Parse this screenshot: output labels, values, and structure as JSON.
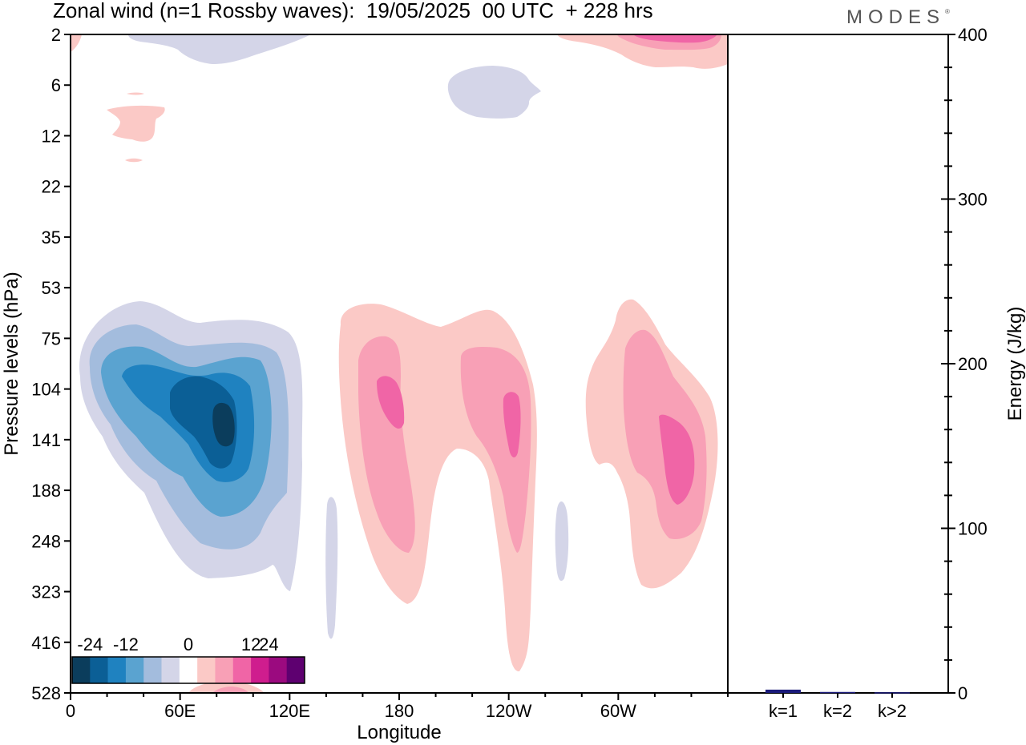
{
  "header": {
    "title": "Zonal wind (n=1 Rossby waves):  19/05/2025  00 UTC  + 228 hrs",
    "brand": "MODES"
  },
  "chart_data": [
    {
      "type": "heatmap",
      "subtype": "filled-contour",
      "xlabel": "Longitude",
      "ylabel": "Pressure levels (hPa)",
      "x_ticks": [
        "0",
        "60E",
        "120E",
        "180",
        "120W",
        "60W"
      ],
      "x_range": [
        0,
        360
      ],
      "y_ticks": [
        "2",
        "6",
        "12",
        "22",
        "35",
        "53",
        "75",
        "104",
        "141",
        "188",
        "248",
        "323",
        "416",
        "528"
      ],
      "colorbar": {
        "labels": [
          "-24",
          "-12",
          "0",
          "12",
          "24"
        ],
        "levels": [
          -30,
          -24,
          -18,
          -12,
          -6,
          -3,
          3,
          6,
          12,
          18,
          24,
          30
        ],
        "colors": [
          "#0b3d5c",
          "#0b5f96",
          "#1f82c0",
          "#5aa3d0",
          "#a3bcdd",
          "#d4d5e8",
          "#ffffff",
          "#fbc9c6",
          "#f8a0b6",
          "#f065a6",
          "#cf1d8e",
          "#9b0a7f",
          "#5e0070"
        ]
      },
      "features": [
        {
          "sign": "negative",
          "peak": "-30 to -24",
          "lon_center": 84,
          "pressure_center": "125",
          "lon_span": [
            4,
            127
          ],
          "pressure_span": [
            "53",
            "323"
          ]
        },
        {
          "sign": "positive",
          "peak": "12 to 18",
          "lon_center": 173,
          "pressure_center": "110",
          "lon_span": [
            149,
            200
          ],
          "pressure_span": [
            "53",
            "323"
          ]
        },
        {
          "sign": "positive",
          "peak": "12 to 18",
          "lon_center": 240,
          "pressure_center": "130",
          "lon_span": [
            200,
            259
          ],
          "pressure_span": [
            "53",
            "416"
          ]
        },
        {
          "sign": "positive",
          "peak": "12 to 18",
          "lon_center": 330,
          "pressure_center": "155",
          "lon_span": [
            283,
            352
          ],
          "pressure_span": [
            "53",
            "323"
          ]
        },
        {
          "sign": "negative",
          "peak": "-6 to -3",
          "lon_center": 237,
          "pressure_center": "6",
          "lon_span": [
            207,
            260
          ],
          "pressure_span": [
            "4",
            "9"
          ]
        },
        {
          "sign": "positive",
          "peak": "6 to 12",
          "lon_center": 340,
          "pressure_center": "2",
          "lon_span": [
            300,
            360
          ],
          "pressure_span": [
            "2",
            "4"
          ]
        },
        {
          "sign": "positive",
          "peak": "3 to 6",
          "lon_center": 35,
          "pressure_center": "11",
          "lon_span": [
            20,
            50
          ],
          "pressure_span": [
            "8",
            "18"
          ]
        },
        {
          "sign": "negative",
          "peak": "-6 to -3",
          "lon_center": 85,
          "pressure_center": "3",
          "lon_span": [
            40,
            130
          ],
          "pressure_span": [
            "2",
            "4"
          ]
        }
      ]
    },
    {
      "type": "bar",
      "ylabel": "Energy (J/kg)",
      "ylim": [
        0,
        400
      ],
      "y_ticks": [
        "0",
        "100",
        "200",
        "300",
        "400"
      ],
      "categories": [
        "k=1",
        "k=2",
        "k>2"
      ],
      "values": [
        2,
        0.6,
        0.4
      ],
      "bar_color": "#1a1a7a"
    }
  ]
}
